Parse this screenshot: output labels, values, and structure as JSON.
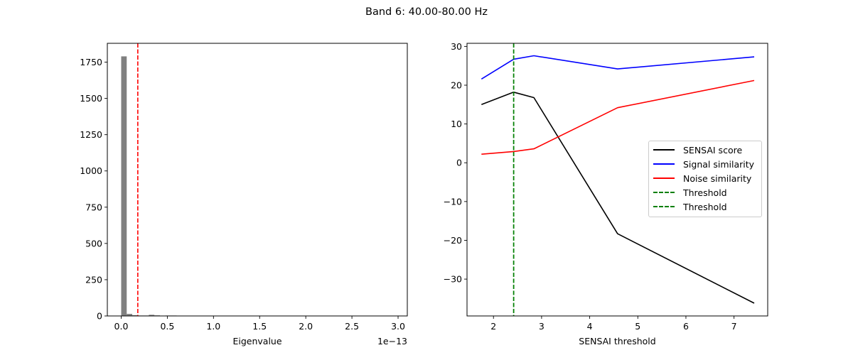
{
  "figure": {
    "title": "Band 6: 40.00-80.00 Hz"
  },
  "chart_data": [
    {
      "type": "bar",
      "title": "",
      "xlabel": "Eigenvalue",
      "ylabel": "",
      "x_offset_label": "1e−13",
      "xlim": [
        -0.15,
        3.1
      ],
      "ylim": [
        0,
        1880
      ],
      "xticks": [
        "0.0",
        "0.5",
        "1.0",
        "1.5",
        "2.0",
        "2.5",
        "3.0"
      ],
      "yticks": [
        "0",
        "250",
        "500",
        "750",
        "1000",
        "1250",
        "1500",
        "1750"
      ],
      "bar_color": "#808080",
      "bins": [
        {
          "x0": 0.0,
          "x1": 0.06,
          "count": 1790
        },
        {
          "x0": 0.06,
          "x1": 0.12,
          "count": 14
        },
        {
          "x0": 0.12,
          "x1": 0.18,
          "count": 5
        },
        {
          "x0": 0.18,
          "x1": 0.24,
          "count": 3
        },
        {
          "x0": 0.24,
          "x1": 0.3,
          "count": 3
        },
        {
          "x0": 0.3,
          "x1": 0.36,
          "count": 8
        },
        {
          "x0": 0.36,
          "x1": 0.42,
          "count": 4
        },
        {
          "x0": 0.42,
          "x1": 0.48,
          "count": 1
        },
        {
          "x0": 0.48,
          "x1": 0.54,
          "count": 3
        },
        {
          "x0": 0.54,
          "x1": 0.6,
          "count": 3
        },
        {
          "x0": 0.6,
          "x1": 0.66,
          "count": 2
        }
      ],
      "threshold_line": {
        "x": 0.18,
        "color": "#ff0000",
        "style": "dashed"
      },
      "grid": false
    },
    {
      "type": "line",
      "title": "",
      "xlabel": "SENSAI threshold",
      "ylabel": "",
      "xlim": [
        1.45,
        7.7
      ],
      "ylim": [
        -39.5,
        30.8
      ],
      "xticks": [
        "2",
        "3",
        "4",
        "5",
        "6",
        "7"
      ],
      "yticks": [
        "30",
        "20",
        "10",
        "0",
        "−10",
        "−20",
        "−30"
      ],
      "x": [
        1.75,
        2.42,
        2.84,
        4.58,
        7.42
      ],
      "series": [
        {
          "name": "SENSAI score",
          "color": "#000000",
          "values": [
            15.0,
            18.2,
            16.8,
            -18.3,
            -36.2
          ]
        },
        {
          "name": "Signal similarity",
          "color": "#0000ff",
          "values": [
            21.6,
            26.7,
            27.6,
            24.2,
            27.3
          ]
        },
        {
          "name": "Noise similarity",
          "color": "#ff0000",
          "values": [
            2.2,
            2.9,
            3.6,
            14.2,
            21.2
          ]
        }
      ],
      "vlines": [
        {
          "name": "Threshold",
          "x": 2.42,
          "color": "#008000",
          "style": "dashed"
        },
        {
          "name": "Threshold",
          "x": 2.42,
          "color": "#008000",
          "style": "dashed"
        }
      ],
      "legend": {
        "position": "center right",
        "entries": [
          "SENSAI score",
          "Signal similarity",
          "Noise similarity",
          "Threshold",
          "Threshold"
        ]
      },
      "grid": false
    }
  ],
  "legend": {
    "items": [
      {
        "label": "SENSAI score",
        "color": "#000000",
        "style": "solid"
      },
      {
        "label": "Signal similarity",
        "color": "#0000ff",
        "style": "solid"
      },
      {
        "label": "Noise similarity",
        "color": "#ff0000",
        "style": "solid"
      },
      {
        "label": "Threshold",
        "color": "#008000",
        "style": "dashed"
      },
      {
        "label": "Threshold",
        "color": "#008000",
        "style": "dashed"
      }
    ]
  }
}
